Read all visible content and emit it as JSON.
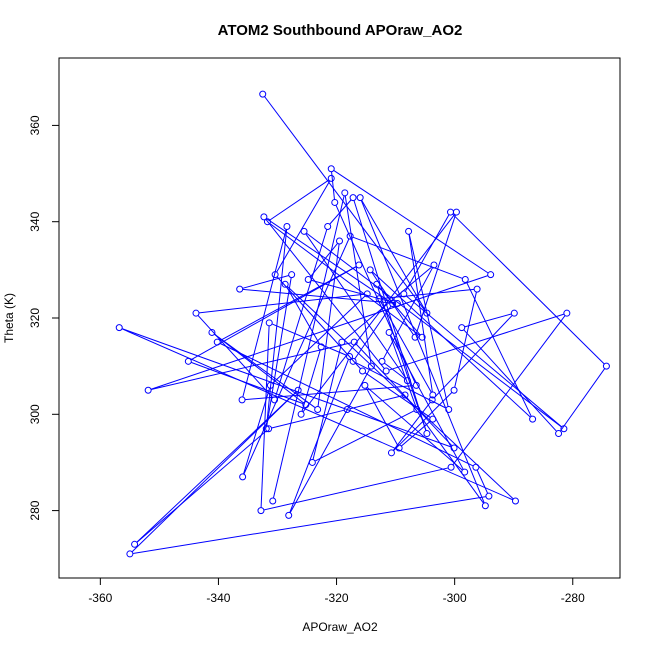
{
  "chart_data": {
    "type": "line",
    "title": "ATOM2 Southbound APOraw_AO2",
    "xlabel": "APOraw_AO2",
    "ylabel": "Theta (K)",
    "xlim": [
      -367,
      -272
    ],
    "ylim": [
      266,
      374
    ],
    "xticks": [
      -360,
      -340,
      -320,
      -300,
      -280
    ],
    "yticks": [
      280,
      300,
      320,
      340,
      360
    ],
    "grid": false,
    "marker": "open-circle",
    "line_color": "#0000ff",
    "series": [
      {
        "x": [
          -332.5,
          -304.7,
          -316.0,
          -294.8,
          -308.4,
          -318.2,
          -331.5,
          -354.2,
          -326.5,
          -355.0,
          -294.2,
          -296.4,
          -340.2,
          -316.2,
          -345.1,
          -325.2,
          -341.1,
          -323.2,
          -319.5,
          -324.8,
          -309.7,
          -336.4,
          -327.6,
          -331.9,
          -328.4,
          -336.0,
          -306.5,
          -320.3,
          -320.9,
          -293.9,
          -351.9,
          -317.0,
          -300.1,
          -356.8,
          -289.7,
          -328.7,
          -322.6,
          -326.0,
          -299.7,
          -306.7,
          -314.3,
          -286.8,
          -298.2,
          -317.7,
          -335.9,
          -331.2,
          -314.8,
          -343.8,
          -330.5,
          -321.5,
          -317.2,
          -304.7,
          -313.2,
          -305.5,
          -331.7,
          -320.9,
          -330.4,
          -315.6,
          -303.7,
          -309.4,
          -315.2,
          -298.3,
          -311.1,
          -306.4,
          -324.1,
          -319.1,
          -303.5,
          -312.3,
          -308.0,
          -325.5,
          -281.5,
          -308.6,
          -300.7,
          -274.3,
          -282.4,
          -298.8,
          -289.9,
          -303.8,
          -310.7,
          -300.1,
          -296.2,
          -312.8,
          -303.7,
          -307.8,
          -301.0,
          -317.2,
          -310.5,
          -332.3,
          -311.6,
          -281.0,
          -300.6,
          -332.8,
          -331.4,
          -317.8,
          -328.1,
          -314.1,
          -318.6,
          -330.8
        ],
        "y": [
          366.5,
          321.0,
          345.0,
          281.0,
          304.0,
          301.0,
          297.0,
          273.0,
          305.0,
          271.0,
          283.0,
          289.0,
          315.0,
          331.0,
          311.0,
          302.0,
          317.0,
          301.0,
          336.0,
          328.0,
          323.0,
          326.0,
          329.0,
          297.0,
          339.0,
          303.0,
          306.0,
          344.0,
          351.0,
          329.0,
          305.0,
          315.0,
          293.0,
          318.0,
          282.0,
          327.0,
          314.0,
          300.0,
          342.0,
          316.0,
          330.0,
          299.0,
          328.0,
          337.0,
          287.0,
          306.0,
          325.0,
          321.0,
          303.0,
          339.0,
          345.0,
          296.0,
          327.0,
          316.0,
          340.0,
          349.0,
          329.0,
          309.0,
          299.0,
          293.0,
          306.0,
          288.0,
          317.0,
          301.0,
          290.0,
          315.0,
          331.0,
          311.0,
          307.0,
          338.0,
          297.0,
          325.0,
          342.0,
          310.0,
          296.0,
          318.0,
          321.0,
          303.0,
          292.0,
          305.0,
          326.0,
          324.0,
          304.0,
          338.0,
          301.0,
          311.0,
          323.0,
          341.0,
          309.0,
          321.0,
          289.0,
          280.0,
          319.0,
          312.0,
          279.0,
          310.0,
          346.0,
          282.0
        ]
      }
    ]
  }
}
